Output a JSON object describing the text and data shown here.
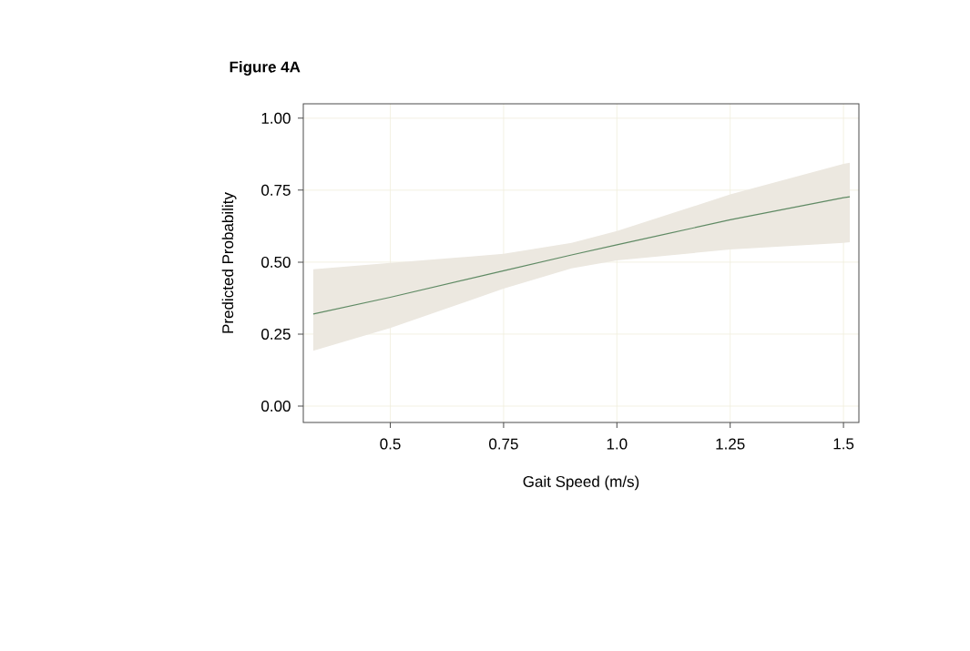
{
  "chart_data": {
    "type": "line",
    "title": "Figure 4A",
    "xlabel": "Gait Speed (m/s)",
    "ylabel": "Predicted Probability",
    "xlim": [
      0.308,
      1.534
    ],
    "ylim": [
      -0.057,
      1.05
    ],
    "xticks": [
      0.5,
      0.75,
      {
        "value": 1.0,
        "label": "1.0"
      },
      1.25,
      1.5
    ],
    "yticks": [
      {
        "value": 0,
        "label": "0.00"
      },
      0.25,
      {
        "value": 0.5,
        "label": "0.50"
      },
      0.75,
      {
        "value": 1,
        "label": "1.00"
      }
    ],
    "grid": true,
    "series": [
      {
        "color": "#5f8a64",
        "x": [
          0.33,
          0.5,
          0.75,
          0.9,
          1.0,
          1.25,
          1.5,
          1.514
        ],
        "values": [
          0.32,
          0.378,
          0.47,
          0.525,
          0.56,
          0.647,
          0.724,
          0.727
        ],
        "lower": [
          0.192,
          0.271,
          0.408,
          0.478,
          0.506,
          0.544,
          0.567,
          0.569
        ],
        "upper": [
          0.475,
          0.497,
          0.529,
          0.567,
          0.608,
          0.735,
          0.841,
          0.845
        ]
      }
    ]
  }
}
